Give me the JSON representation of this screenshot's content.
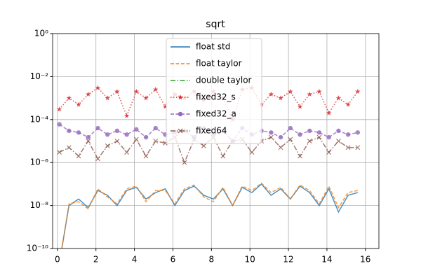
{
  "chart_data": {
    "type": "line",
    "title": "sqrt",
    "yscale": "log",
    "grid": true,
    "legend": "upper center",
    "x": [
      0.1,
      0.6,
      1.1,
      1.6,
      2.1,
      2.6,
      3.1,
      3.6,
      4.1,
      4.6,
      5.1,
      5.6,
      6.1,
      6.6,
      7.1,
      7.6,
      8.1,
      8.6,
      9.1,
      9.6,
      10.1,
      10.6,
      11.1,
      11.6,
      12.1,
      12.6,
      13.1,
      13.6,
      14.1,
      14.6,
      15.1,
      15.6
    ],
    "xlim": [
      -0.25,
      16.7
    ],
    "xticks": [
      0,
      2,
      4,
      6,
      8,
      10,
      12,
      14,
      16
    ],
    "ylim": [
      1e-10,
      1
    ],
    "yticks": [
      {
        "value": 1e-10,
        "label": "10⁻¹⁰"
      },
      {
        "value": 1e-08,
        "label": "10⁻⁸"
      },
      {
        "value": 1e-06,
        "label": "10⁻⁶"
      },
      {
        "value": 0.0001,
        "label": "10⁻⁴"
      },
      {
        "value": 0.01,
        "label": "10⁻²"
      },
      {
        "value": 1,
        "label": "10⁰"
      }
    ],
    "series": [
      {
        "name": "float std",
        "color": "#1f77b4",
        "linestyle": "solid",
        "marker": "none",
        "values": [
          2e-11,
          1e-08,
          2e-08,
          8e-09,
          5e-08,
          3e-08,
          1e-08,
          5e-08,
          7e-08,
          2e-08,
          4e-08,
          6e-08,
          1e-08,
          5e-08,
          8e-08,
          3e-08,
          2e-08,
          6e-08,
          1e-08,
          7e-08,
          4e-08,
          1e-07,
          3e-08,
          6e-08,
          2e-08,
          8e-08,
          4e-08,
          1e-08,
          6e-08,
          5e-09,
          3e-08,
          4e-08
        ]
      },
      {
        "name": "float taylor",
        "color": "#ff7f0e",
        "linestyle": "dashed",
        "marker": "none",
        "values": [
          2e-11,
          1.2e-08,
          1.5e-08,
          7e-09,
          6e-08,
          2.5e-08,
          1.2e-08,
          6e-08,
          8e-08,
          1.5e-08,
          5e-08,
          5e-08,
          1.2e-08,
          6e-08,
          9e-08,
          2.5e-08,
          1.5e-08,
          7e-08,
          1e-08,
          8e-08,
          5e-08,
          1.1e-07,
          4e-08,
          7e-08,
          2e-08,
          9e-08,
          5e-08,
          1.2e-08,
          8e-08,
          8e-09,
          4e-08,
          5e-08
        ]
      },
      {
        "name": "double taylor",
        "color": "#2ca02c",
        "linestyle": "dashdot",
        "marker": "none",
        "values": [
          null,
          null,
          null,
          null,
          null,
          null,
          null,
          null,
          null,
          null,
          null,
          null,
          null,
          null,
          null,
          null,
          null,
          null,
          null,
          null,
          null,
          null,
          null,
          null,
          null,
          null,
          null,
          null,
          null,
          null,
          null,
          null
        ]
      },
      {
        "name": "fixed32_s",
        "color": "#d62728",
        "linestyle": "dotted",
        "marker": "star",
        "values": [
          0.0003,
          0.001,
          0.0005,
          0.0015,
          0.003,
          0.001,
          0.002,
          0.00015,
          0.002,
          0.001,
          0.0025,
          0.0004,
          0.0015,
          0.001,
          0.002,
          0.0008,
          0.002,
          0.001,
          0.0001,
          0.0025,
          0.003,
          0.0005,
          0.0015,
          0.001,
          0.002,
          0.0004,
          0.0015,
          0.002,
          0.0002,
          0.001,
          0.0005,
          0.002
        ]
      },
      {
        "name": "fixed32_a",
        "color": "#9467bd",
        "linestyle": "dashed",
        "marker": "circle",
        "values": [
          6e-05,
          3e-05,
          2.5e-05,
          1.5e-05,
          4e-05,
          2e-05,
          3e-05,
          2e-05,
          3.5e-05,
          1.5e-05,
          4e-05,
          2e-05,
          2.5e-05,
          3e-05,
          1.5e-05,
          4e-05,
          2e-05,
          3e-05,
          1e-05,
          4e-05,
          2e-05,
          3e-05,
          2.5e-05,
          1.5e-05,
          4e-05,
          2e-05,
          3e-05,
          2.5e-05,
          1.5e-05,
          3e-05,
          2e-05,
          2.5e-05
        ]
      },
      {
        "name": "fixed64",
        "color": "#8c564b",
        "linestyle": "dashdot",
        "marker": "x",
        "values": [
          3e-06,
          5e-06,
          2e-06,
          1e-05,
          1.5e-06,
          6e-06,
          1e-05,
          3e-06,
          1.2e-05,
          2e-06,
          1e-05,
          8e-06,
          1.5e-05,
          1e-06,
          1.2e-05,
          6e-06,
          1.5e-05,
          2e-06,
          1e-05,
          1.2e-05,
          3e-06,
          1e-05,
          1.5e-05,
          5e-06,
          1.2e-05,
          2e-06,
          1e-05,
          1.5e-05,
          3e-06,
          1e-05,
          5e-06,
          5e-06
        ]
      }
    ]
  }
}
